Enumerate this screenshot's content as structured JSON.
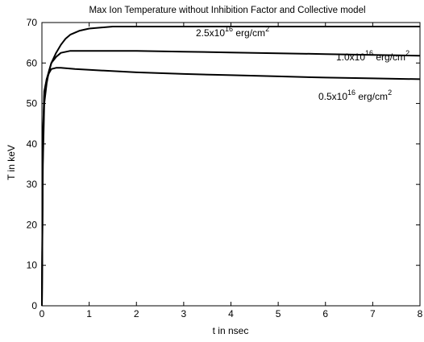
{
  "chart_data": {
    "type": "line",
    "title": "Max Ion Temperature without Inhibition Factor and  Collective model",
    "xlabel": "t in nsec",
    "ylabel": "T in keV",
    "xlim": [
      0,
      8
    ],
    "ylim": [
      0,
      70
    ],
    "xticks": [
      "0",
      "1",
      "2",
      "3",
      "4",
      "5",
      "6",
      "7",
      "8"
    ],
    "yticks": [
      "0",
      "10",
      "20",
      "30",
      "40",
      "50",
      "60",
      "70"
    ],
    "grid": false,
    "legend": "none",
    "series": [
      {
        "name": "2.5x10^16 erg/cm^2",
        "label_base": "2.5x10",
        "label_exp": "16",
        "label_unit": " erg/cm",
        "label_unit_exp": "2",
        "color": "#000000",
        "x": [
          0.0,
          0.02,
          0.05,
          0.1,
          0.15,
          0.2,
          0.3,
          0.4,
          0.5,
          0.6,
          0.8,
          1.0,
          1.5,
          2.0,
          3.0,
          4.0,
          5.0,
          6.0,
          7.0,
          8.0
        ],
        "y": [
          0,
          35,
          50,
          55,
          58,
          60,
          62.5,
          64.5,
          66,
          67,
          68,
          68.5,
          69,
          69,
          69,
          69,
          69,
          69,
          69,
          69
        ]
      },
      {
        "name": "1.0x10^16 erg/cm^2",
        "label_base": "1.0x10",
        "label_exp": "16",
        "label_unit": " erg/cm",
        "label_unit_exp": "2",
        "color": "#000000",
        "x": [
          0.0,
          0.02,
          0.05,
          0.1,
          0.15,
          0.2,
          0.3,
          0.4,
          0.6,
          0.8,
          1.0,
          2.0,
          3.0,
          4.0,
          5.0,
          6.0,
          7.0,
          8.0
        ],
        "y": [
          0,
          40,
          52,
          56,
          58,
          60,
          61.5,
          62.5,
          63,
          63,
          63,
          63,
          62.8,
          62.6,
          62.4,
          62.2,
          62,
          61.8
        ]
      },
      {
        "name": "0.5x10^16 erg/cm^2",
        "label_base": "0.5x10",
        "label_exp": "16",
        "label_unit": " erg/cm",
        "label_unit_exp": "2",
        "color": "#000000",
        "x": [
          0.0,
          0.02,
          0.05,
          0.1,
          0.15,
          0.2,
          0.3,
          0.4,
          0.5,
          0.7,
          1.0,
          2.0,
          3.0,
          4.0,
          5.0,
          6.0,
          7.0,
          8.0
        ],
        "y": [
          0,
          42,
          53,
          56,
          57.5,
          58.5,
          58.8,
          58.8,
          58.7,
          58.5,
          58.3,
          57.7,
          57.3,
          57,
          56.7,
          56.4,
          56.2,
          56
        ]
      }
    ]
  }
}
